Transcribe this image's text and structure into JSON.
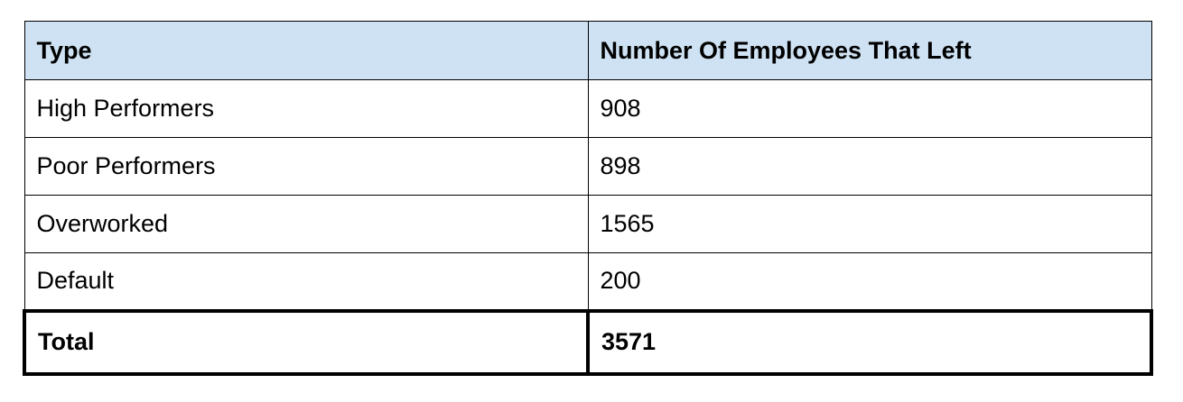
{
  "table": {
    "headers": [
      "Type",
      "Number Of Employees That Left"
    ],
    "rows": [
      [
        "High Performers",
        "908"
      ],
      [
        "Poor Performers",
        "898"
      ],
      [
        "Overworked",
        "1565"
      ],
      [
        "Default",
        "200"
      ]
    ],
    "total": [
      "Total",
      "3571"
    ]
  },
  "colors": {
    "header_background": "#cfe2f3",
    "border": "#000000"
  }
}
